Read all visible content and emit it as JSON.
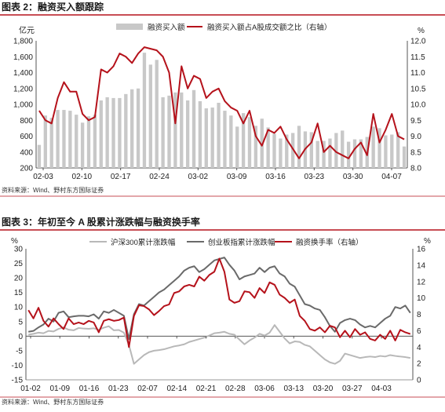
{
  "figure1": {
    "title": "图表 2：融资买入额跟踪",
    "source": "资料来源：Wind、野村东方国际证券",
    "left_unit": "亿元",
    "right_unit": "%"
  },
  "figure2": {
    "title": "图表 3：年初至今 A 股累计涨跌幅与融资换手率",
    "source": "资料来源：Wind、野村东方国际证券",
    "left_unit": "%",
    "right_unit": "%"
  },
  "colors": {
    "bar": "#c8c8c8",
    "red": "#b5121b",
    "light_gray": "#b8b8b8",
    "dark_gray": "#6a6a6a"
  },
  "chart_data": [
    {
      "type": "bar+line",
      "x_tick_labels": [
        "02-03",
        "02-10",
        "02-17",
        "02-24",
        "03-02",
        "03-09",
        "03-16",
        "03-23",
        "03-30",
        "04-07"
      ],
      "y_left": {
        "range": [
          200,
          1800
        ],
        "ticks": [
          "200",
          "400",
          "600",
          "800",
          "1,000",
          "1,200",
          "1,400",
          "1,600",
          "1,800"
        ]
      },
      "y_right": {
        "range": [
          8.0,
          12.0
        ],
        "ticks": [
          "8.0",
          "8.5",
          "9.0",
          "9.5",
          "10.0",
          "10.5",
          "11.0",
          "11.5",
          "12.0"
        ]
      },
      "series": [
        {
          "name": "融资买入额",
          "axis": "left",
          "kind": "bar",
          "values": [
            490,
            860,
            830,
            930,
            930,
            920,
            870,
            770,
            850,
            870,
            1050,
            1090,
            1080,
            1080,
            1130,
            1190,
            1200,
            1650,
            1500,
            1560,
            1090,
            1110,
            1150,
            1150,
            1050,
            1180,
            1040,
            950,
            960,
            1020,
            920,
            860,
            720,
            890,
            840,
            730,
            820,
            710,
            630,
            570,
            620,
            640,
            730,
            660,
            650,
            540,
            540,
            570,
            640,
            670,
            530,
            560,
            560,
            590,
            720,
            700,
            610,
            620,
            650,
            470
          ]
        },
        {
          "name": "融资买入额占A股成交额之比（右轴）",
          "axis": "right",
          "kind": "line",
          "values": [
            9.8,
            9.5,
            9.4,
            10.2,
            10.7,
            10.4,
            10.4,
            9.7,
            9.5,
            9.6,
            11.1,
            11.0,
            11.2,
            11.6,
            11.5,
            11.3,
            11.6,
            11.8,
            11.75,
            11.7,
            11.5,
            11.0,
            9.4,
            11.2,
            10.5,
            10.9,
            10.8,
            10.2,
            10.4,
            10.5,
            10.1,
            9.9,
            9.8,
            9.4,
            9.8,
            9.0,
            8.7,
            9.2,
            9.1,
            9.3,
            8.9,
            8.6,
            8.3,
            8.6,
            8.8,
            9.4,
            8.5,
            8.7,
            8.5,
            8.4,
            8.3,
            8.6,
            8.8,
            8.4,
            9.7,
            8.8,
            9.2,
            9.7,
            9.0,
            8.9
          ]
        }
      ]
    },
    {
      "type": "line",
      "x_tick_labels": [
        "01-02",
        "01-09",
        "01-16",
        "01-23",
        "02-07",
        "02-14",
        "02-21",
        "02-28",
        "03-06",
        "03-13",
        "03-20",
        "03-27",
        "04-03"
      ],
      "y_left": {
        "range": [
          -15,
          30
        ],
        "ticks": [
          "-15",
          "-10",
          "-5",
          "0",
          "5",
          "10",
          "15",
          "20",
          "25",
          "30"
        ]
      },
      "y_right": {
        "range": [
          0,
          16
        ],
        "ticks": [
          "0",
          "2",
          "4",
          "6",
          "8",
          "10",
          "12",
          "14",
          "16"
        ]
      },
      "series": [
        {
          "name": "沪深300累计涨跌幅",
          "axis": "left",
          "values": [
            0.5,
            0.8,
            1.2,
            1.0,
            1.8,
            1.6,
            2.5,
            3.0,
            2.2,
            2.0,
            2.8,
            2.6,
            2.5,
            2.7,
            2.2,
            2.9,
            3.4,
            2.0,
            2.1,
            1.2,
            -3.0,
            -9.5,
            -8.0,
            -6.5,
            -5.5,
            -5.0,
            -4.8,
            -4.5,
            -4.0,
            -3.5,
            -3.2,
            -2.8,
            -2.0,
            -1.5,
            -1.0,
            -0.5,
            0.2,
            1.0,
            1.2,
            1.5,
            0.8,
            0.5,
            -1.2,
            -2.8,
            -1.5,
            -0.5,
            0.8,
            0.2,
            1.2,
            3.8,
            1.5,
            -0.8,
            -2.5,
            -1.8,
            -2.0,
            -3.0,
            -3.5,
            -5.0,
            -6.5,
            -8.0,
            -9.0,
            -9.5,
            -8.5,
            -6.0,
            -6.5,
            -7.0,
            -7.5,
            -7.2,
            -7.0,
            -7.2,
            -6.8,
            -7.0,
            -6.5,
            -6.8,
            -7.0,
            -7.2,
            -7.5
          ]
        },
        {
          "name": "创业板指累计涨跌幅",
          "axis": "left",
          "values": [
            1.5,
            1.8,
            3.0,
            4.0,
            6.0,
            5.0,
            8.0,
            8.5,
            6.5,
            6.8,
            7.0,
            7.0,
            6.8,
            7.5,
            6.0,
            8.5,
            8.0,
            9.0,
            8.0,
            7.0,
            -1.0,
            7.5,
            11.0,
            10.5,
            12.0,
            13.5,
            15.0,
            16.0,
            17.5,
            19.0,
            20.5,
            22.5,
            23.5,
            24.0,
            22.0,
            23.0,
            24.5,
            26.0,
            26.5,
            27.0,
            24.5,
            22.5,
            19.5,
            20.5,
            21.0,
            21.5,
            23.5,
            22.0,
            23.5,
            24.0,
            21.5,
            20.5,
            18.0,
            17.0,
            14.0,
            11.0,
            10.5,
            9.5,
            9.0,
            6.5,
            3.5,
            1.5,
            4.5,
            5.5,
            6.0,
            5.5,
            4.0,
            3.0,
            3.5,
            3.0,
            4.5,
            6.0,
            7.0,
            10.0,
            9.5,
            10.5,
            8.0
          ]
        },
        {
          "name": "融资换手率（右轴）",
          "axis": "right",
          "values": [
            8.5,
            7.5,
            8.8,
            7.2,
            6.5,
            7.5,
            6.8,
            6.2,
            7.5,
            6.8,
            7.0,
            6.8,
            7.2,
            7.0,
            5.8,
            7.2,
            7.4,
            7.2,
            7.3,
            7.6,
            4.0,
            7.8,
            9.1,
            9.0,
            8.6,
            7.9,
            8.4,
            9.0,
            9.2,
            10.6,
            10.8,
            11.4,
            11.6,
            11.4,
            12.6,
            12.1,
            12.8,
            13.2,
            14.8,
            13.2,
            9.8,
            9.4,
            9.6,
            10.8,
            10.7,
            10.0,
            11.2,
            10.6,
            11.9,
            11.6,
            10.4,
            10.0,
            9.4,
            9.8,
            7.8,
            7.2,
            6.2,
            6.0,
            6.4,
            5.8,
            6.6,
            6.4,
            5.2,
            6.0,
            5.2,
            6.2,
            5.5,
            5.8,
            5.0,
            4.8,
            5.5,
            5.0,
            6.0,
            4.8,
            6.1,
            5.8,
            5.6
          ]
        }
      ]
    }
  ]
}
